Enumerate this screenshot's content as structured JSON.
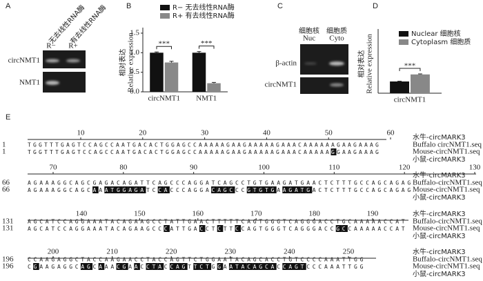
{
  "panel_labels": [
    "A",
    "B",
    "C",
    "D",
    "E"
  ],
  "gel_A": {
    "treatments": [
      "无去线性RNA酶",
      "有去线性RNA酶"
    ],
    "lanes": [
      "R−",
      "R+"
    ],
    "rows": [
      "circNMT1",
      "NMT1"
    ]
  },
  "gel_C": {
    "fractions": [
      "细胞核",
      "细胞质"
    ],
    "lanes": [
      "Nuc",
      "Cyto"
    ],
    "rows": [
      "β-actin",
      "circNMT1"
    ]
  },
  "chart_data": [
    {
      "type": "bar",
      "ylabel": "相对表达",
      "ylabel_en": "Relative expression",
      "categories": [
        "circNMT1",
        "NMT1"
      ],
      "series": [
        {
          "name": "R− 无去线性RNA酶",
          "color": "#111111",
          "values": [
            1.0,
            1.0
          ],
          "errors": [
            0.02,
            0.03
          ]
        },
        {
          "name": "R+ 有去线性RNA酶",
          "color": "#888888",
          "values": [
            0.75,
            0.22
          ],
          "errors": [
            0.03,
            0.02
          ]
        }
      ],
      "annotations": [
        "***",
        "***"
      ],
      "ylim": [
        0,
        1.5
      ],
      "yticks": [
        {
          "value": 0,
          "label": "0.0"
        },
        {
          "value": 0.5,
          "label": "0.5"
        },
        {
          "value": 1,
          "label": "1.0"
        },
        {
          "value": 1.5,
          "label": "1.5"
        }
      ]
    },
    {
      "type": "bar",
      "ylabel": "相对表达",
      "ylabel_en": "Relative expression",
      "categories": [
        "circNMT1"
      ],
      "series": [
        {
          "name": "Nuclear 细胞核",
          "color": "#111111",
          "values": [
            1.0
          ],
          "errors": [
            0.02
          ]
        },
        {
          "name": "Cytoplasm 细胞质",
          "color": "#888888",
          "values": [
            1.6
          ],
          "errors": [
            0.05
          ]
        }
      ],
      "annotations": [
        "***"
      ],
      "ylim": [
        0,
        5
      ]
    }
  ],
  "alignment": {
    "blocks": [
      {
        "start": 1,
        "ruler": [
          10,
          20,
          30,
          40,
          50,
          60
        ],
        "names": [
          "水牛-circMARK3",
          "Buffalo circNMT1.seq",
          "Mouse-circNMT1.seq",
          "小鼠-circMARK3"
        ],
        "seqs": [
          "TGGTTTGAGTCCAGCCAATGACACTGGAGCCAAAAAGAAGAAAAAGAAACAAAAAAGAAGAAAG",
          "TGGTTTGAGTCCAGCCAATGACACTGGAGCCAAAAAGAAGAAAAAGAAACAAAAAGGAAGAAAG"
        ]
      },
      {
        "start": 66,
        "ruler": [
          70,
          80,
          90,
          100,
          110,
          120,
          130
        ],
        "names": [
          "水牛-circMARK3",
          "Buffalo-circNMT1.seq",
          "Mouse-circNMT1.seq",
          "小鼠-circMARK3"
        ],
        "seqs": [
          "AGAAAGGCAGCGAGACAGATTCAGCCCAGGATCAGCCTGTGAAGATGAACTCTTTGCCAGCAGAG",
          "AGAAAGGCAGCAAATGGAGATCCACCCAGGACAGCCCGTGTGAAGATGACTCTTTGCCAGCAGAG"
        ]
      },
      {
        "start": 131,
        "ruler": [
          140,
          150,
          160,
          170,
          180,
          190
        ],
        "names": [
          "水牛-circMARK3",
          "Buffalo-circNMT1.seq",
          "Mouse-circNMT1.seq",
          "小鼠-circMARK3"
        ],
        "seqs": [
          "AGCATCCAGGAAATACAGAAGCCTATTGAACTTTTTCAGTGGGTCAGGGACCTGCAAAAACCAT",
          "AGCATCCAGGAAATACAGAAGCCCATTGACCTCTTCCAGTGGGTCAGGGACCGCCAAAAACCAT"
        ]
      },
      {
        "start": 196,
        "ruler": [
          200,
          210,
          220,
          230,
          240,
          250
        ],
        "names": [
          "水牛-circMARK3",
          "Buffalo-circNMT1.seq",
          "Mouse-circNMT1.seq",
          "小鼠-circMARK3"
        ],
        "seqs": [
          "CCAAGAGGCTACCAAGAACCTACCAGTTCTGGAATACAGCACCTGTCCCCAAATTGG",
          "CGAAGAGGCAGCAAACGAACCTACCAGTTCTGGAATACAGCACCAGTCCCAAATTGG"
        ]
      }
    ]
  }
}
